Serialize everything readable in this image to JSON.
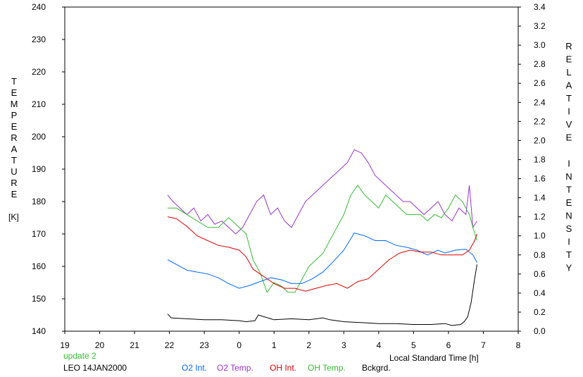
{
  "chart_data": {
    "type": "line",
    "left_axis": {
      "label": "TEMPERATURE",
      "unit": "[K]",
      "ticks": [
        "140",
        "150",
        "160",
        "170",
        "180",
        "190",
        "200",
        "210",
        "220",
        "230",
        "240"
      ],
      "range": [
        140,
        240
      ]
    },
    "right_axis": {
      "label": "RELATIVE INTENSITY",
      "ticks": [
        "0.0",
        "0.2",
        "0.4",
        "0.6",
        "0.8",
        "1.0",
        "1.2",
        "1.4",
        "1.6",
        "1.8",
        "2.0",
        "2.2",
        "2.4",
        "2.6",
        "2.8",
        "3.0",
        "3.2",
        "3.4"
      ],
      "range": [
        0,
        3.4
      ]
    },
    "x_axis": {
      "label": "Local Standard Time [h]",
      "ticks": [
        "19",
        "20",
        "21",
        "22",
        "23",
        "0",
        "1",
        "2",
        "3",
        "4",
        "5",
        "6",
        "7",
        "8"
      ],
      "range": [
        19,
        32
      ]
    },
    "grid": false,
    "status": "update 2",
    "station": "LEO 14JAN2000",
    "series": [
      {
        "name": "O2 Int.",
        "color": "#0066ff",
        "axis": "right",
        "x": [
          21.95,
          22.2,
          22.5,
          22.8,
          23.1,
          23.4,
          23.7,
          24.0,
          24.3,
          24.6,
          24.9,
          25.2,
          25.5,
          25.8,
          26.1,
          26.4,
          26.7,
          27.0,
          27.3,
          27.6,
          27.9,
          28.2,
          28.5,
          28.8,
          29.1,
          29.4,
          29.7,
          29.9,
          30.2,
          30.5,
          30.7,
          30.82
        ],
        "y": [
          0.75,
          0.7,
          0.64,
          0.62,
          0.6,
          0.56,
          0.5,
          0.45,
          0.48,
          0.52,
          0.56,
          0.54,
          0.5,
          0.5,
          0.55,
          0.62,
          0.73,
          0.85,
          1.03,
          1.0,
          0.95,
          0.95,
          0.9,
          0.88,
          0.85,
          0.8,
          0.85,
          0.82,
          0.85,
          0.86,
          0.8,
          0.72
        ]
      },
      {
        "name": "O2 Temp.",
        "color": "#9933cc",
        "axis": "left",
        "x": [
          21.95,
          22.1,
          22.3,
          22.5,
          22.7,
          22.9,
          23.1,
          23.3,
          23.5,
          23.7,
          23.9,
          24.1,
          24.3,
          24.5,
          24.7,
          24.9,
          25.1,
          25.3,
          25.5,
          25.7,
          25.9,
          26.1,
          26.3,
          26.5,
          26.7,
          26.9,
          27.1,
          27.3,
          27.5,
          27.7,
          27.9,
          28.1,
          28.3,
          28.5,
          28.7,
          28.9,
          29.1,
          29.3,
          29.5,
          29.7,
          29.9,
          30.1,
          30.3,
          30.5,
          30.6,
          30.7,
          30.82
        ],
        "y": [
          182,
          180,
          178,
          176,
          178,
          174,
          176,
          173,
          174,
          172,
          170,
          172,
          176,
          180,
          182,
          176,
          178,
          174,
          172,
          176,
          180,
          182,
          184,
          186,
          188,
          190,
          192,
          196,
          195,
          192,
          188,
          186,
          184,
          182,
          180,
          180,
          178,
          176,
          178,
          180,
          176,
          174,
          178,
          176,
          185,
          172,
          174
        ]
      },
      {
        "name": "OH Int.",
        "color": "#dd0000",
        "axis": "right",
        "x": [
          21.95,
          22.2,
          22.5,
          22.8,
          23.1,
          23.4,
          23.7,
          24.0,
          24.2,
          24.4,
          24.6,
          24.8,
          25.0,
          25.3,
          25.6,
          25.9,
          26.2,
          26.5,
          26.8,
          27.1,
          27.4,
          27.7,
          28.0,
          28.3,
          28.6,
          28.9,
          29.2,
          29.5,
          29.8,
          30.1,
          30.4,
          30.6,
          30.75,
          30.82
        ],
        "y": [
          1.2,
          1.18,
          1.1,
          1.0,
          0.95,
          0.9,
          0.88,
          0.85,
          0.78,
          0.65,
          0.6,
          0.55,
          0.5,
          0.45,
          0.45,
          0.42,
          0.45,
          0.48,
          0.5,
          0.45,
          0.52,
          0.55,
          0.65,
          0.75,
          0.82,
          0.85,
          0.83,
          0.83,
          0.8,
          0.8,
          0.8,
          0.85,
          0.95,
          1.02
        ]
      },
      {
        "name": "OH Temp.",
        "color": "#33bb33",
        "axis": "left",
        "x": [
          21.95,
          22.2,
          22.5,
          22.8,
          23.1,
          23.4,
          23.7,
          24.0,
          24.2,
          24.4,
          24.6,
          24.8,
          25.0,
          25.2,
          25.4,
          25.6,
          25.8,
          26.0,
          26.2,
          26.4,
          26.6,
          26.8,
          27.0,
          27.2,
          27.4,
          27.6,
          27.8,
          28.0,
          28.2,
          28.4,
          28.6,
          28.8,
          29.0,
          29.2,
          29.4,
          29.6,
          29.8,
          30.0,
          30.2,
          30.4,
          30.6,
          30.7,
          30.82
        ],
        "y": [
          178,
          178,
          176,
          174,
          172,
          172,
          175,
          172,
          170,
          162,
          158,
          152,
          155,
          154,
          152,
          152,
          156,
          160,
          162,
          164,
          168,
          172,
          176,
          182,
          185,
          182,
          180,
          178,
          182,
          180,
          178,
          176,
          176,
          176,
          174,
          176,
          175,
          178,
          182,
          180,
          176,
          172,
          168
        ]
      },
      {
        "name": "Bckgrd.",
        "color": "#000000",
        "axis": "right",
        "x": [
          21.95,
          22.05,
          22.5,
          23.0,
          23.5,
          24.0,
          24.2,
          24.45,
          24.55,
          25.0,
          25.5,
          26.0,
          26.4,
          26.6,
          27.0,
          27.5,
          28.0,
          28.5,
          29.0,
          29.5,
          29.9,
          30.1,
          30.35,
          30.45,
          30.55,
          30.65,
          30.75,
          30.82
        ],
        "y": [
          0.18,
          0.14,
          0.13,
          0.12,
          0.12,
          0.11,
          0.1,
          0.11,
          0.17,
          0.12,
          0.13,
          0.12,
          0.14,
          0.12,
          0.1,
          0.09,
          0.08,
          0.08,
          0.07,
          0.07,
          0.08,
          0.06,
          0.07,
          0.1,
          0.15,
          0.3,
          0.55,
          0.7
        ]
      }
    ]
  }
}
